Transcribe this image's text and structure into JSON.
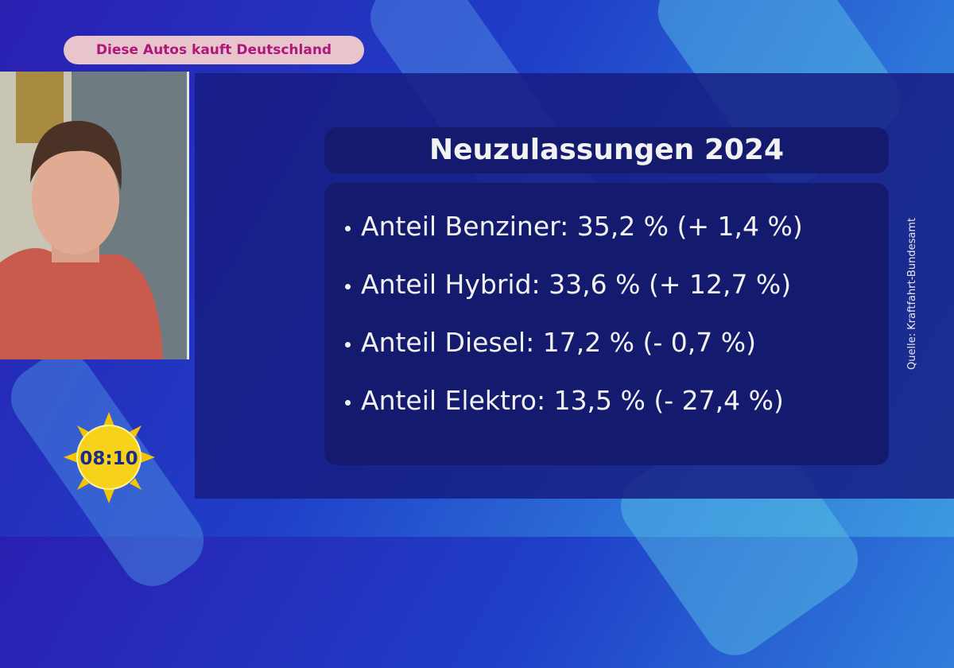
{
  "banner": {
    "text": "Diese Autos kauft Deutschland"
  },
  "panel": {
    "title": "Neuzulassungen 2024",
    "items": [
      "Anteil Benziner: 35,2 % (+ 1,4 %)",
      "Anteil Hybrid: 33,6 % (+ 12,7 %)",
      "Anteil Diesel: 17,2 % (- 0,7 %)",
      "Anteil Elektro: 13,5 % (- 27,4 %)"
    ],
    "source": "Quelle: Kraftfahrt-Bundesamt"
  },
  "clock": {
    "time": "08:10"
  }
}
